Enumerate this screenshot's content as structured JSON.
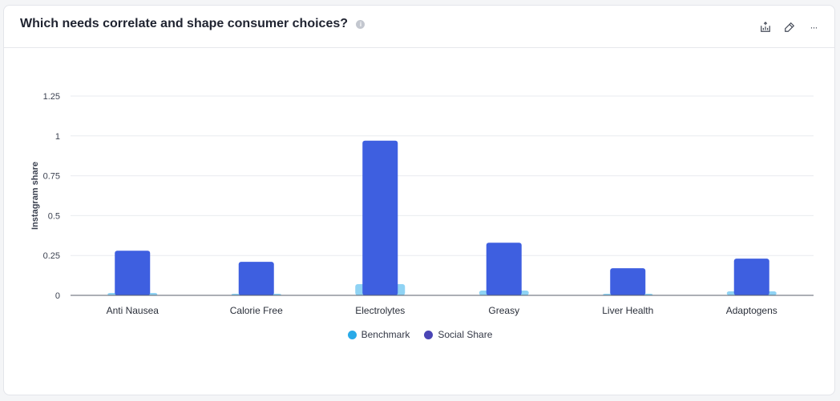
{
  "header": {
    "title": "Which needs correlate and shape consumer choices?",
    "info_glyph": "i"
  },
  "toolbar": {
    "icons": [
      "export-chart-icon",
      "edit-icon",
      "more-icon"
    ],
    "more_glyph": "···"
  },
  "chart_data": {
    "type": "bar",
    "categories": [
      "Anti Nausea",
      "Calorie Free",
      "Electrolytes",
      "Greasy",
      "Liver Health",
      "Adaptogens"
    ],
    "series": [
      {
        "name": "Benchmark",
        "values": [
          0.015,
          0.01,
          0.07,
          0.03,
          0.01,
          0.025
        ],
        "color": "#8fd3f4"
      },
      {
        "name": "Social Share",
        "values": [
          0.28,
          0.21,
          0.97,
          0.33,
          0.17,
          0.23
        ],
        "color": "#3e5fe0"
      }
    ],
    "legend_colors": {
      "Benchmark": "#29aae8",
      "Social Share": "#4a45b5"
    },
    "ylabel": "Instagram share",
    "yticks": [
      "0",
      "0.25",
      "0.5",
      "0.75",
      "1",
      "1.25"
    ],
    "ylim": [
      0,
      1.25
    ],
    "grid": true,
    "legend_position": "bottom-center"
  }
}
